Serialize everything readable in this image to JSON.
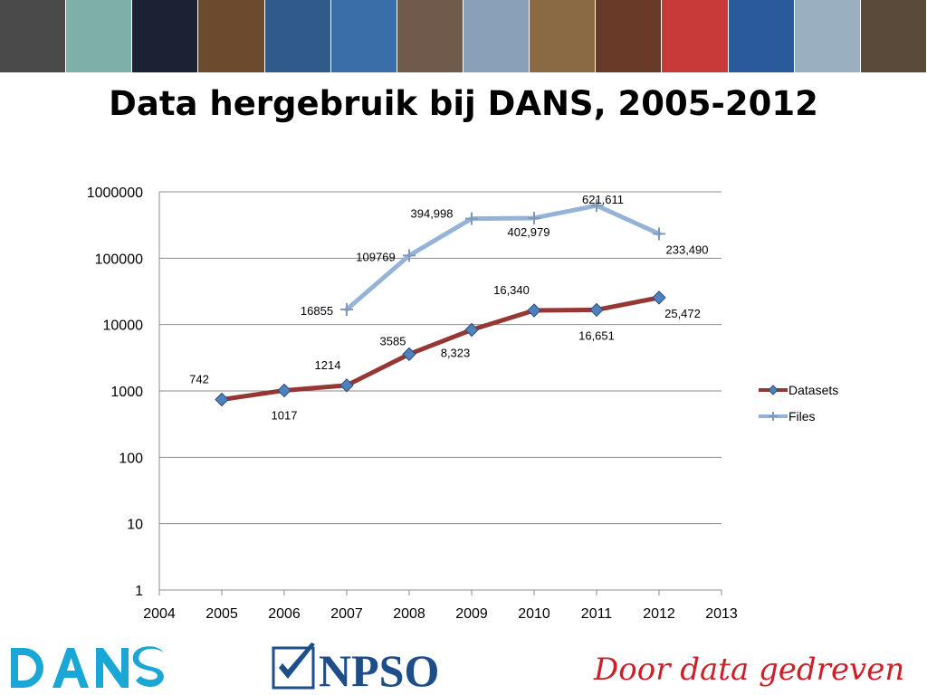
{
  "slide": {
    "title": "Data hergebruik bij DANS, 2005-2012",
    "slogan": "Door data gedreven",
    "npso_text": "NPSO",
    "banner_tiles": [
      "#4a4a4a",
      "#7fb0a8",
      "#1c2233",
      "#6b4a2e",
      "#2f5a8a",
      "#3a6ea8",
      "#6f5a4c",
      "#8aa0b8",
      "#8a6a44",
      "#6a3a28",
      "#c83a3a",
      "#2a5a9a",
      "#9ab0c0",
      "#5a4a3a"
    ]
  },
  "chart_data": {
    "type": "line",
    "title": "",
    "xlabel": "",
    "ylabel": "",
    "x_scale": "linear",
    "y_scale": "log",
    "xlim": [
      2004,
      2013
    ],
    "ylim": [
      1,
      1000000
    ],
    "x_ticks": [
      "2004",
      "2005",
      "2006",
      "2007",
      "2008",
      "2009",
      "2010",
      "2011",
      "2012",
      "2013"
    ],
    "y_ticks": [
      "1",
      "10",
      "100",
      "1000",
      "10000",
      "100000",
      "1000000"
    ],
    "grid": "horizontal",
    "legend_position": "right",
    "series": [
      {
        "name": "Datasets",
        "color": "#953735",
        "marker": "diamond",
        "marker_color": "#4f81bd",
        "points": [
          {
            "x": 2005,
            "y": 742,
            "label": "742"
          },
          {
            "x": 2006,
            "y": 1017,
            "label": "1017"
          },
          {
            "x": 2007,
            "y": 1214,
            "label": "1214"
          },
          {
            "x": 2008,
            "y": 3585,
            "label": "3585"
          },
          {
            "x": 2009,
            "y": 8323,
            "label": "8,323"
          },
          {
            "x": 2010,
            "y": 16340,
            "label": "16,340"
          },
          {
            "x": 2011,
            "y": 16651,
            "label": "16,651"
          },
          {
            "x": 2012,
            "y": 25472,
            "label": "25,472"
          }
        ]
      },
      {
        "name": "Files",
        "color": "#95b3d7",
        "marker": "plus",
        "marker_color": "#7f9ab8",
        "points": [
          {
            "x": 2007,
            "y": 16855,
            "label": "16855"
          },
          {
            "x": 2008,
            "y": 109769,
            "label": "109769"
          },
          {
            "x": 2009,
            "y": 394998,
            "label": "394,998"
          },
          {
            "x": 2010,
            "y": 402979,
            "label": "402,979"
          },
          {
            "x": 2011,
            "y": 621611,
            "label": "621,611"
          },
          {
            "x": 2012,
            "y": 233490,
            "label": "233,490"
          }
        ]
      }
    ]
  }
}
